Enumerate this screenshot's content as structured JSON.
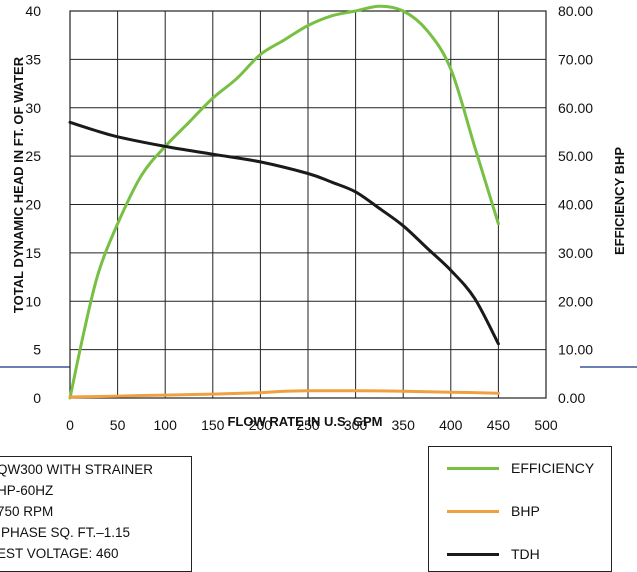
{
  "chart_data": {
    "type": "line",
    "xlabel": "FLOW RATE IN U.S. GPM",
    "ylabel_left": "TOTAL DYNAMIC HEAD IN FT. OF WATER",
    "ylabel_right": "EFFICIENCY BHP",
    "x_ticks": [
      "0",
      "50",
      "100",
      "150",
      "200",
      "250",
      "300",
      "350",
      "400",
      "450",
      "500"
    ],
    "y_left_ticks": [
      "0",
      "5",
      "10",
      "15",
      "20",
      "25",
      "30",
      "35",
      "40"
    ],
    "y_right_ticks": [
      "0.00",
      "10.00",
      "20.00",
      "30.00",
      "40.00",
      "50.00",
      "60.00",
      "70.00",
      "80.00"
    ],
    "xlim": [
      0,
      500
    ],
    "ylim_left": [
      0,
      40
    ],
    "ylim_right": [
      0,
      80
    ],
    "grid": true,
    "legend_position": "bottom-right",
    "series": [
      {
        "name": "EFFICIENCY",
        "axis": "right",
        "color": "#77c043",
        "x": [
          0,
          15,
          30,
          50,
          75,
          100,
          125,
          150,
          175,
          200,
          225,
          250,
          275,
          300,
          325,
          350,
          375,
          400,
          425,
          450
        ],
        "y": [
          0,
          14,
          26,
          36,
          46,
          52,
          57,
          62,
          66,
          71,
          74,
          77,
          79,
          80,
          81,
          80,
          76,
          68,
          52,
          36
        ]
      },
      {
        "name": "BHP",
        "axis": "left",
        "color": "#f0a040",
        "x": [
          0,
          50,
          100,
          150,
          200,
          225,
          250,
          300,
          350,
          400,
          450
        ],
        "y": [
          0.1,
          0.2,
          0.3,
          0.4,
          0.55,
          0.7,
          0.75,
          0.75,
          0.7,
          0.6,
          0.5
        ]
      },
      {
        "name": "TDH",
        "axis": "left",
        "color": "#1a1a1a",
        "x": [
          0,
          25,
          50,
          100,
          150,
          200,
          250,
          275,
          300,
          325,
          350,
          375,
          400,
          425,
          450
        ],
        "y": [
          28.5,
          27.7,
          27.0,
          26.0,
          25.2,
          24.4,
          23.2,
          22.3,
          21.3,
          19.6,
          17.8,
          15.5,
          13.2,
          10.3,
          5.6
        ]
      }
    ]
  },
  "info_box": {
    "lines": [
      "QW300 WITH STRAINER",
      "HP-60HZ",
      "750 RPM",
      "PHASE SQ. FT.–1.15",
      "EST VOLTAGE: 460"
    ]
  },
  "legend": {
    "items": [
      {
        "label": "EFFICIENCY",
        "color": "#77c043"
      },
      {
        "label": "BHP",
        "color": "#f0a040"
      },
      {
        "label": "TDH",
        "color": "#1a1a1a"
      }
    ]
  },
  "colors": {
    "band": "#6b7fb5",
    "grid": "#222222"
  }
}
